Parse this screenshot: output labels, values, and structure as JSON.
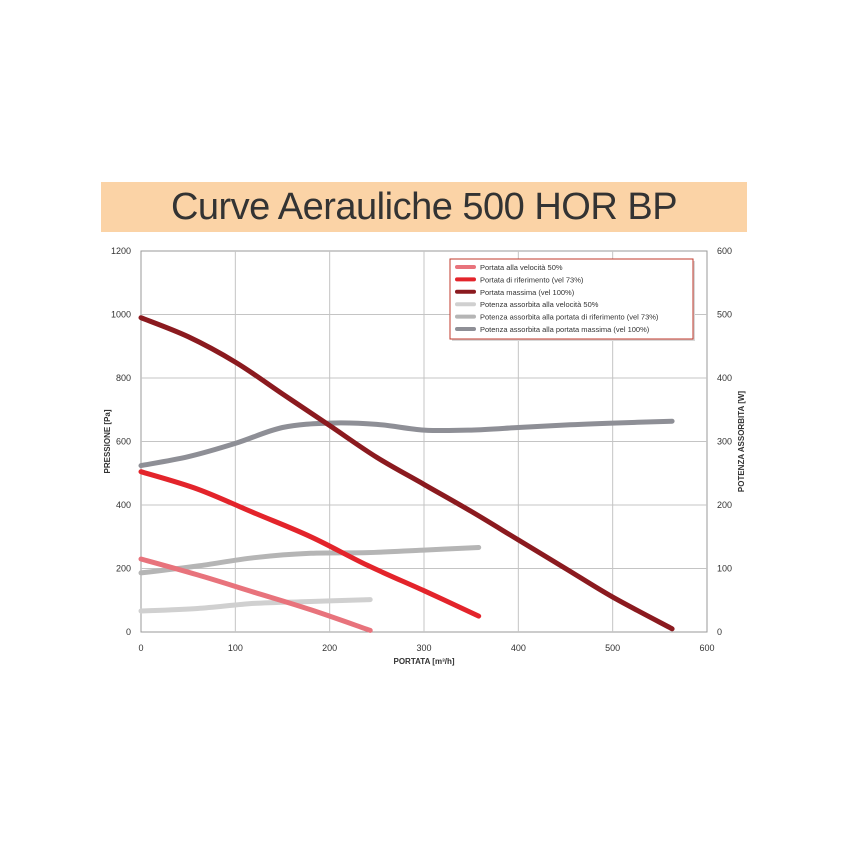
{
  "chart_data": {
    "type": "line",
    "title": "Curve Aerauliche 500 HOR BP",
    "xlabel": "PORTATA [m³/h]",
    "ylabel": "PRESSIONE [Pa]",
    "y2label": "POTENZA ASSORBITA [W]",
    "xlim": [
      0,
      600
    ],
    "ylim": [
      0,
      1200
    ],
    "y2lim": [
      0,
      600
    ],
    "x_ticks": [
      "0",
      "100",
      "200",
      "300",
      "400",
      "500",
      "600"
    ],
    "y_ticks": [
      "0",
      "200",
      "400",
      "600",
      "800",
      "1000",
      "1200"
    ],
    "y2_ticks": [
      "0",
      "100",
      "200",
      "300",
      "400",
      "500",
      "600"
    ],
    "grid": true,
    "legend_position": "top-right",
    "series": [
      {
        "name": "Portata alla velocità 50%",
        "axis": "left",
        "color": "#e8737c",
        "x": [
          0,
          60,
          120,
          180,
          243
        ],
        "y": [
          230,
          180,
          125,
          70,
          5
        ]
      },
      {
        "name": "Portata di riferimento (vel 73%)",
        "axis": "left",
        "color": "#e3242b",
        "x": [
          0,
          60,
          120,
          180,
          240,
          300,
          358
        ],
        "y": [
          505,
          450,
          375,
          300,
          210,
          130,
          50
        ]
      },
      {
        "name": "Portata massima (vel 100%)",
        "axis": "left",
        "color": "#8b1a1f",
        "x": [
          0,
          50,
          100,
          150,
          200,
          250,
          300,
          350,
          400,
          450,
          500,
          563
        ],
        "y": [
          990,
          930,
          850,
          750,
          650,
          550,
          465,
          380,
          290,
          200,
          110,
          10
        ]
      },
      {
        "name": "Potenza assorbita alla velocità 50%",
        "axis": "right",
        "color": "#d0d0d0",
        "x": [
          0,
          60,
          120,
          180,
          243
        ],
        "y": [
          33,
          37,
          45,
          48,
          51
        ]
      },
      {
        "name": "Potenza assorbita alla portata di riferimento (vel 73%)",
        "axis": "right",
        "color": "#b5b5b5",
        "x": [
          0,
          60,
          120,
          180,
          240,
          300,
          358
        ],
        "y": [
          93,
          104,
          117,
          124,
          125,
          129,
          133
        ]
      },
      {
        "name": "Potenza assorbita alla portata massima (vel 100%)",
        "axis": "right",
        "color": "#8e8f96",
        "x": [
          0,
          50,
          100,
          150,
          200,
          250,
          300,
          350,
          400,
          450,
          500,
          563
        ],
        "y": [
          262,
          276,
          297,
          322,
          329,
          327,
          318,
          318,
          322,
          326,
          329,
          332
        ]
      }
    ]
  }
}
